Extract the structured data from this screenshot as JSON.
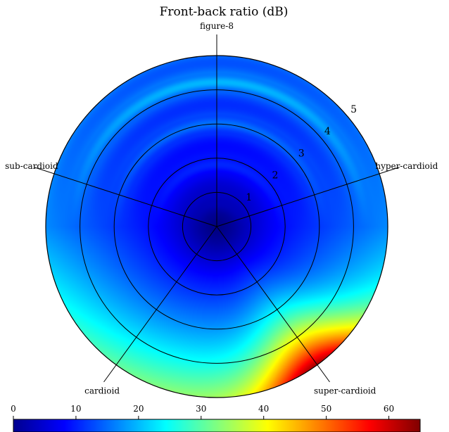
{
  "chart_data": {
    "type": "heatmap",
    "title": "Front-back ratio (dB)",
    "radial_ticks": [
      "1",
      "2",
      "3",
      "4",
      "5"
    ],
    "rmax": 5,
    "spokes": [
      {
        "name": "figure-8",
        "angle_deg": 90
      },
      {
        "name": "hyper-cardioid",
        "angle_deg": 18
      },
      {
        "name": "super-cardioid",
        "angle_deg": -54
      },
      {
        "name": "cardioid",
        "angle_deg": -126
      },
      {
        "name": "sub-cardioid",
        "angle_deg": 162
      }
    ],
    "colorbar": {
      "min": 0,
      "max": 65,
      "ticks": [
        0,
        10,
        20,
        30,
        40,
        50,
        60
      ],
      "colormap": "jet"
    },
    "field_hotspot": {
      "angle_deg": -54,
      "r": 5,
      "value": 65
    }
  }
}
